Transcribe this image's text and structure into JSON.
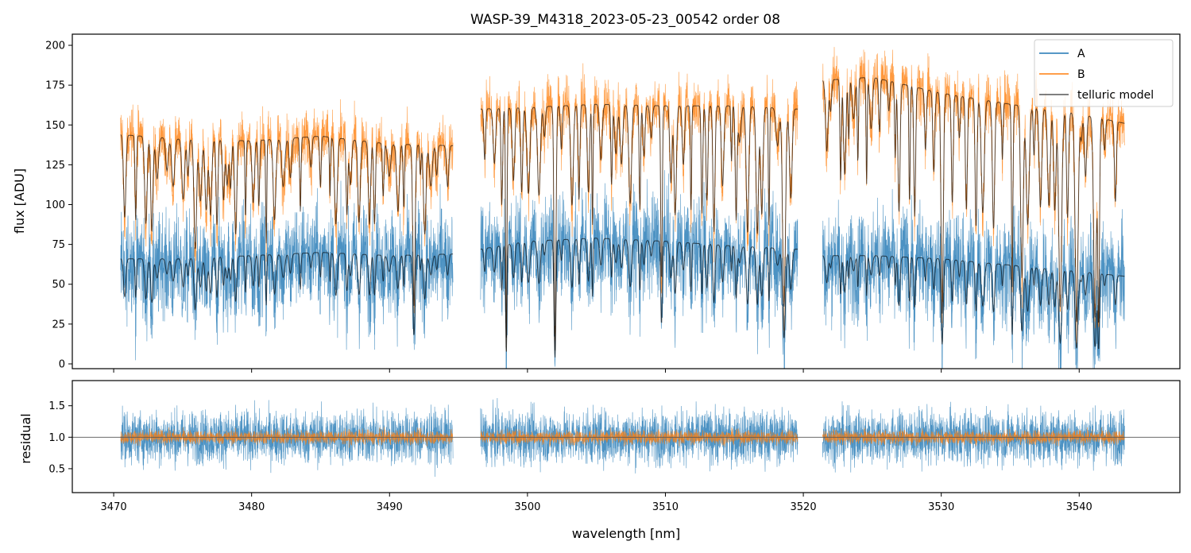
{
  "chart_data": {
    "type": "line",
    "title": "WASP-39_M4318_2023-05-23_00542  order 08",
    "colors": {
      "A": "#1f77b4",
      "B": "#ff7f0e",
      "model": "#000000",
      "unity": "#555555"
    },
    "segments": [
      [
        3470.5,
        3494.6
      ],
      [
        3496.6,
        3519.6
      ],
      [
        3521.4,
        3543.3
      ]
    ],
    "model_baseline": {
      "B": [
        [
          3470.5,
          144
        ],
        [
          3475,
          141
        ],
        [
          3480,
          140
        ],
        [
          3485,
          143
        ],
        [
          3490,
          138
        ],
        [
          3494.6,
          137
        ],
        [
          3496.6,
          160
        ],
        [
          3500,
          161
        ],
        [
          3505,
          163
        ],
        [
          3510,
          162
        ],
        [
          3515,
          162
        ],
        [
          3519.6,
          160
        ],
        [
          3521.4,
          178
        ],
        [
          3525,
          180
        ],
        [
          3530,
          170
        ],
        [
          3535,
          163
        ],
        [
          3540,
          157
        ],
        [
          3543.3,
          151
        ]
      ],
      "A": [
        [
          3470.5,
          66
        ],
        [
          3475,
          66
        ],
        [
          3480,
          68
        ],
        [
          3485,
          70
        ],
        [
          3490,
          68
        ],
        [
          3494.6,
          69
        ],
        [
          3496.6,
          72
        ],
        [
          3500,
          77
        ],
        [
          3505,
          79
        ],
        [
          3510,
          77
        ],
        [
          3515,
          74
        ],
        [
          3519.6,
          72
        ],
        [
          3521.4,
          68
        ],
        [
          3525,
          68
        ],
        [
          3530,
          66
        ],
        [
          3535,
          62
        ],
        [
          3540,
          58
        ],
        [
          3543.3,
          55
        ]
      ]
    },
    "panels": [
      {
        "id": "main",
        "ylabel": "flux [ADU]",
        "ylim": [
          -3,
          207
        ],
        "yticks": [
          0,
          25,
          50,
          75,
          100,
          125,
          150,
          175,
          200
        ],
        "yticklabels": [
          "0",
          "25",
          "50",
          "75",
          "100",
          "125",
          "150",
          "175",
          "200"
        ],
        "series": [
          {
            "name": "A",
            "level": 70,
            "noise": 28
          },
          {
            "name": "B",
            "level": 150,
            "noise": 18
          },
          {
            "name": "telluric model"
          }
        ],
        "legend": {
          "position": "top-right",
          "entries": [
            "A",
            "B",
            "telluric model"
          ]
        }
      },
      {
        "id": "residual",
        "ylabel": "residual",
        "ylim": [
          0.12,
          1.9
        ],
        "yticks": [
          0.5,
          1.0,
          1.5
        ],
        "yticklabels": [
          "0.5",
          "1.0",
          "1.5"
        ],
        "reference_line": 1.0,
        "series": [
          {
            "name": "A",
            "level": 1.0,
            "noise": 0.3
          },
          {
            "name": "B",
            "level": 1.0,
            "noise": 0.08
          }
        ]
      }
    ],
    "xlabel": "wavelength [nm]",
    "xlim": [
      3467,
      3547.3
    ],
    "xticks": [
      3470,
      3480,
      3490,
      3500,
      3510,
      3520,
      3530,
      3540
    ],
    "xticklabels": [
      "3470",
      "3480",
      "3490",
      "3500",
      "3510",
      "3520",
      "3530",
      "3540"
    ]
  }
}
